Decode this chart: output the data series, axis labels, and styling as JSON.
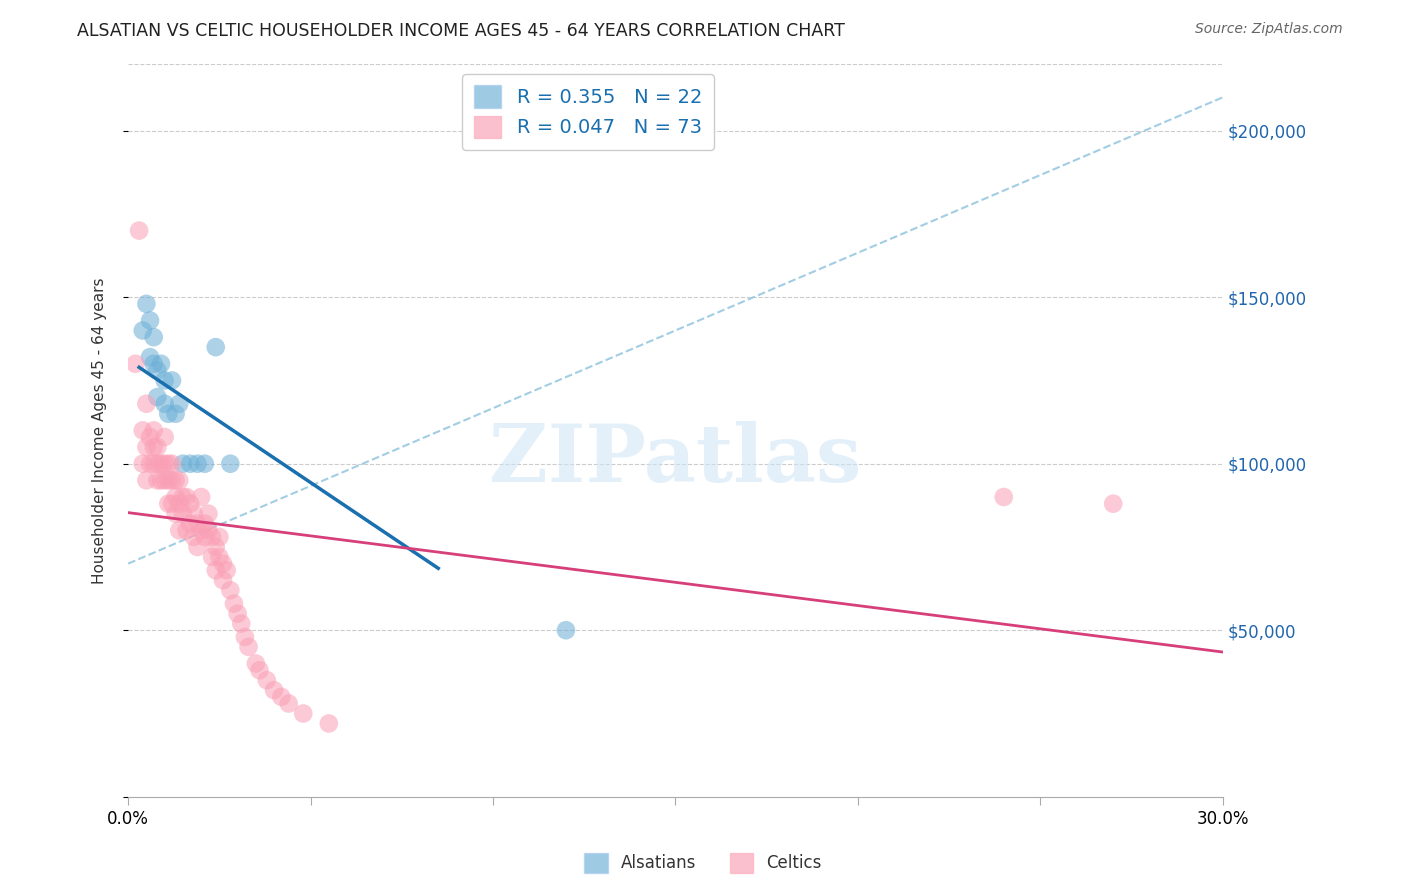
{
  "title": "ALSATIAN VS CELTIC HOUSEHOLDER INCOME AGES 45 - 64 YEARS CORRELATION CHART",
  "source": "Source: ZipAtlas.com",
  "ylabel": "Householder Income Ages 45 - 64 years",
  "xmin": 0.0,
  "xmax": 0.3,
  "ymin": 0,
  "ymax": 220000,
  "yticks": [
    0,
    50000,
    100000,
    150000,
    200000
  ],
  "ytick_labels": [
    "",
    "$50,000",
    "$100,000",
    "$150,000",
    "$200,000"
  ],
  "watermark": "ZIPatlas",
  "legend_r1": "R = 0.355",
  "legend_n1": "N = 22",
  "legend_r2": "R = 0.047",
  "legend_n2": "N = 73",
  "alsatian_color": "#6baed6",
  "celtic_color": "#fa9fb5",
  "blue_line_color": "#1a6faf",
  "pink_line_color": "#d63f7a",
  "dashed_line_color": "#92c5de",
  "alsatian_x": [
    0.004,
    0.005,
    0.006,
    0.006,
    0.007,
    0.007,
    0.008,
    0.008,
    0.009,
    0.01,
    0.01,
    0.011,
    0.012,
    0.013,
    0.014,
    0.015,
    0.017,
    0.019,
    0.021,
    0.024,
    0.028,
    0.12
  ],
  "alsatian_y": [
    140000,
    148000,
    132000,
    143000,
    138000,
    130000,
    128000,
    120000,
    130000,
    125000,
    118000,
    115000,
    125000,
    115000,
    118000,
    100000,
    100000,
    100000,
    100000,
    135000,
    100000,
    50000
  ],
  "celtic_x": [
    0.002,
    0.003,
    0.004,
    0.004,
    0.005,
    0.005,
    0.005,
    0.006,
    0.006,
    0.007,
    0.007,
    0.007,
    0.008,
    0.008,
    0.008,
    0.009,
    0.009,
    0.01,
    0.01,
    0.01,
    0.011,
    0.011,
    0.011,
    0.012,
    0.012,
    0.012,
    0.013,
    0.013,
    0.013,
    0.014,
    0.014,
    0.014,
    0.015,
    0.015,
    0.016,
    0.016,
    0.017,
    0.017,
    0.018,
    0.018,
    0.019,
    0.019,
    0.02,
    0.02,
    0.021,
    0.021,
    0.022,
    0.022,
    0.023,
    0.023,
    0.024,
    0.024,
    0.025,
    0.025,
    0.026,
    0.026,
    0.027,
    0.028,
    0.029,
    0.03,
    0.031,
    0.032,
    0.033,
    0.035,
    0.036,
    0.038,
    0.04,
    0.042,
    0.044,
    0.048,
    0.055,
    0.24,
    0.27
  ],
  "celtic_y": [
    130000,
    170000,
    110000,
    100000,
    105000,
    95000,
    118000,
    108000,
    100000,
    110000,
    100000,
    105000,
    105000,
    95000,
    100000,
    100000,
    95000,
    100000,
    108000,
    95000,
    100000,
    95000,
    88000,
    95000,
    88000,
    100000,
    95000,
    85000,
    90000,
    88000,
    95000,
    80000,
    90000,
    85000,
    80000,
    90000,
    88000,
    82000,
    85000,
    78000,
    82000,
    75000,
    80000,
    90000,
    78000,
    82000,
    80000,
    85000,
    78000,
    72000,
    75000,
    68000,
    72000,
    78000,
    70000,
    65000,
    68000,
    62000,
    58000,
    55000,
    52000,
    48000,
    45000,
    40000,
    38000,
    35000,
    32000,
    30000,
    28000,
    25000,
    22000,
    90000,
    88000
  ]
}
